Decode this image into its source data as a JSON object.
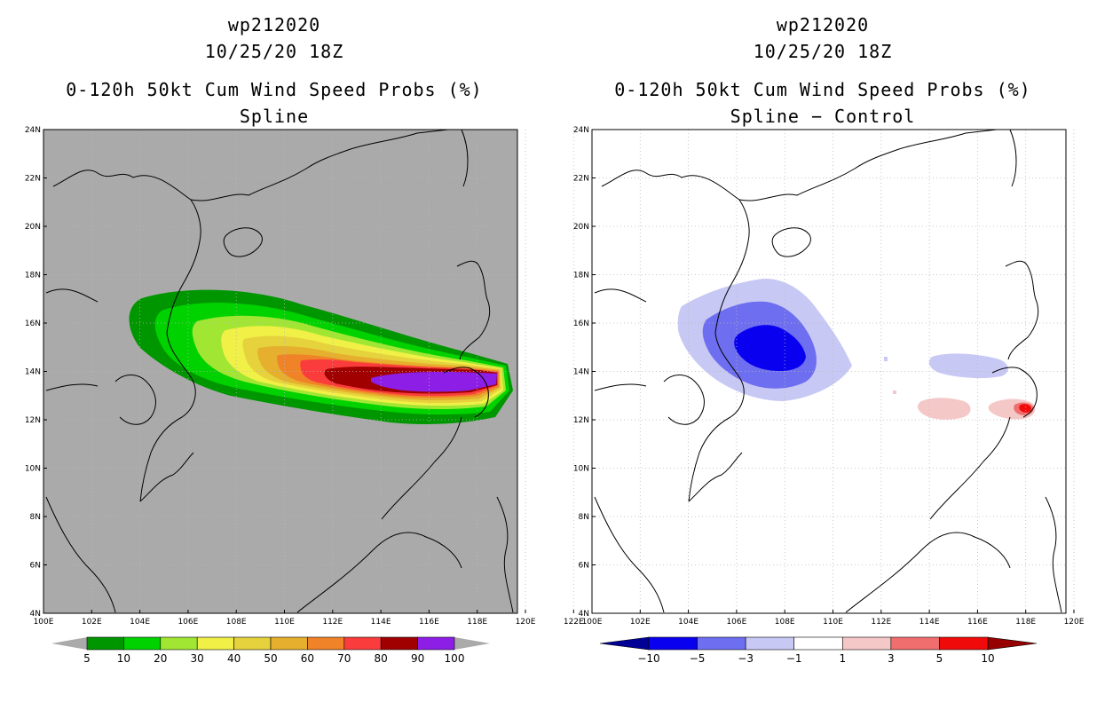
{
  "left_panel": {
    "storm_id": "wp212020",
    "datetime": "10/25/20 18Z",
    "product": "0-120h 50kt Cum Wind Speed Probs (%)",
    "subtitle": "Spline",
    "colorbar_labels": [
      "5",
      "10",
      "20",
      "30",
      "40",
      "50",
      "60",
      "70",
      "80",
      "90",
      "100"
    ],
    "colorbar_colors": [
      "#009600",
      "#00d200",
      "#a0e632",
      "#f0f046",
      "#e6d23c",
      "#e6af2d",
      "#f08228",
      "#fa3c3c",
      "#a00000",
      "#8c1ee6"
    ]
  },
  "right_panel": {
    "storm_id": "wp212020",
    "datetime": "10/25/20 18Z",
    "product": "0-120h 50kt Cum Wind Speed Probs (%)",
    "subtitle": "Spline − Control",
    "colorbar_labels": [
      "−10",
      "−5",
      "−3",
      "−1",
      "1",
      "3",
      "5",
      "10"
    ],
    "colorbar_colors": [
      "#000096",
      "#0a00f0",
      "#6e6ef0",
      "#c8c8f5",
      "#ffffff",
      "#f5c8c8",
      "#f06e6e",
      "#f00a0a",
      "#960000"
    ]
  },
  "map_axes": {
    "lat_labels": [
      "24N",
      "22N",
      "20N",
      "18N",
      "16N",
      "14N",
      "12N",
      "10N",
      "8N",
      "6N",
      "4N"
    ],
    "lon_labels": [
      "100E",
      "102E",
      "104E",
      "106E",
      "108E",
      "110E",
      "112E",
      "114E",
      "116E",
      "118E",
      "120E",
      "122E"
    ]
  },
  "colors": {
    "land_sea_background": "#aaaaaa",
    "coastline": "#000000",
    "grid": "#bbbbbb"
  }
}
